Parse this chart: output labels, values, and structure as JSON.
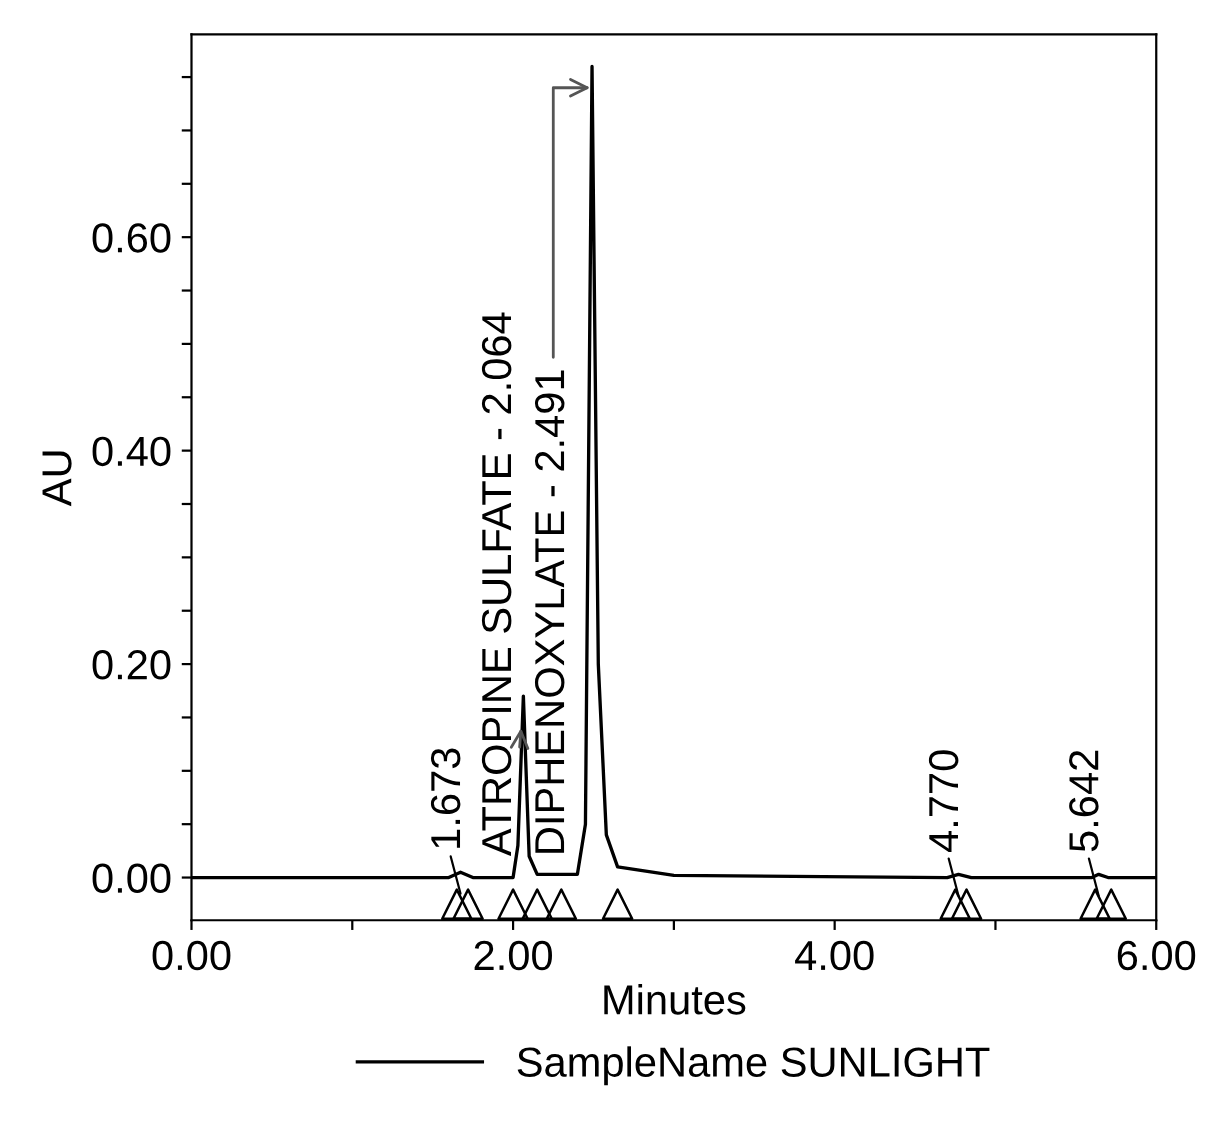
{
  "chart_data": {
    "type": "line",
    "xlabel": "Minutes",
    "ylabel": "AU",
    "legend": "bottom",
    "xlim": [
      0,
      6
    ],
    "ylim": [
      -0.04,
      0.79
    ],
    "xticks": [
      {
        "value": 0,
        "label": "0.00"
      },
      {
        "value": 1,
        "label": null
      },
      {
        "value": 2,
        "label": "2.00"
      },
      {
        "value": 3,
        "label": null
      },
      {
        "value": 4,
        "label": "4.00"
      },
      {
        "value": 5,
        "label": null
      },
      {
        "value": 6,
        "label": "6.00"
      }
    ],
    "yticks": [
      {
        "value": 0,
        "label": "0.00"
      },
      {
        "value": 0.05,
        "label": null
      },
      {
        "value": 0.1,
        "label": null
      },
      {
        "value": 0.15,
        "label": null
      },
      {
        "value": 0.2,
        "label": "0.20"
      },
      {
        "value": 0.25,
        "label": null
      },
      {
        "value": 0.3,
        "label": null
      },
      {
        "value": 0.35,
        "label": null
      },
      {
        "value": 0.4,
        "label": "0.40"
      },
      {
        "value": 0.45,
        "label": null
      },
      {
        "value": 0.5,
        "label": null
      },
      {
        "value": 0.55,
        "label": null
      },
      {
        "value": 0.6,
        "label": "0.60"
      },
      {
        "value": 0.65,
        "label": null
      },
      {
        "value": 0.7,
        "label": null
      },
      {
        "value": 0.75,
        "label": null
      }
    ],
    "grid": false,
    "series": [
      {
        "name": "SampleName SUNLIGHT",
        "color": "#000000",
        "x": [
          0,
          1.6,
          1.673,
          1.75,
          2.0,
          2.03,
          2.064,
          2.1,
          2.15,
          2.4,
          2.45,
          2.491,
          2.53,
          2.58,
          2.65,
          3.0,
          4.7,
          4.77,
          4.85,
          5.6,
          5.642,
          5.7,
          6.0
        ],
        "values": [
          0,
          0,
          0.005,
          0,
          0,
          0.03,
          0.17,
          0.02,
          0.003,
          0.003,
          0.05,
          0.76,
          0.2,
          0.04,
          0.01,
          0.002,
          0,
          0.003,
          0,
          0,
          0.003,
          0,
          0
        ]
      },
      {
        "type": "scatter",
        "marker": "triangle",
        "color": "#000000",
        "x": [
          1.65,
          1.72,
          2.0,
          2.15,
          2.3,
          2.65,
          4.75,
          4.82,
          5.62,
          5.72
        ],
        "values": [
          -0.025,
          -0.025,
          -0.025,
          -0.025,
          -0.025,
          -0.025,
          -0.025,
          -0.025,
          -0.025,
          -0.025
        ]
      }
    ],
    "annotations": [
      {
        "text": "1.673",
        "x": 1.673,
        "y": 0.005
      },
      {
        "text": "ATROPINE SULFATE - 2.064",
        "x": 2.05,
        "y": 0.14
      },
      {
        "text": "DIPHENOXYLATE - 2.491",
        "x": 2.48,
        "y": 0.74
      },
      {
        "text": "4.770",
        "x": 4.77,
        "y": 0.003
      },
      {
        "text": "5.642",
        "x": 5.642,
        "y": 0.003
      }
    ]
  }
}
